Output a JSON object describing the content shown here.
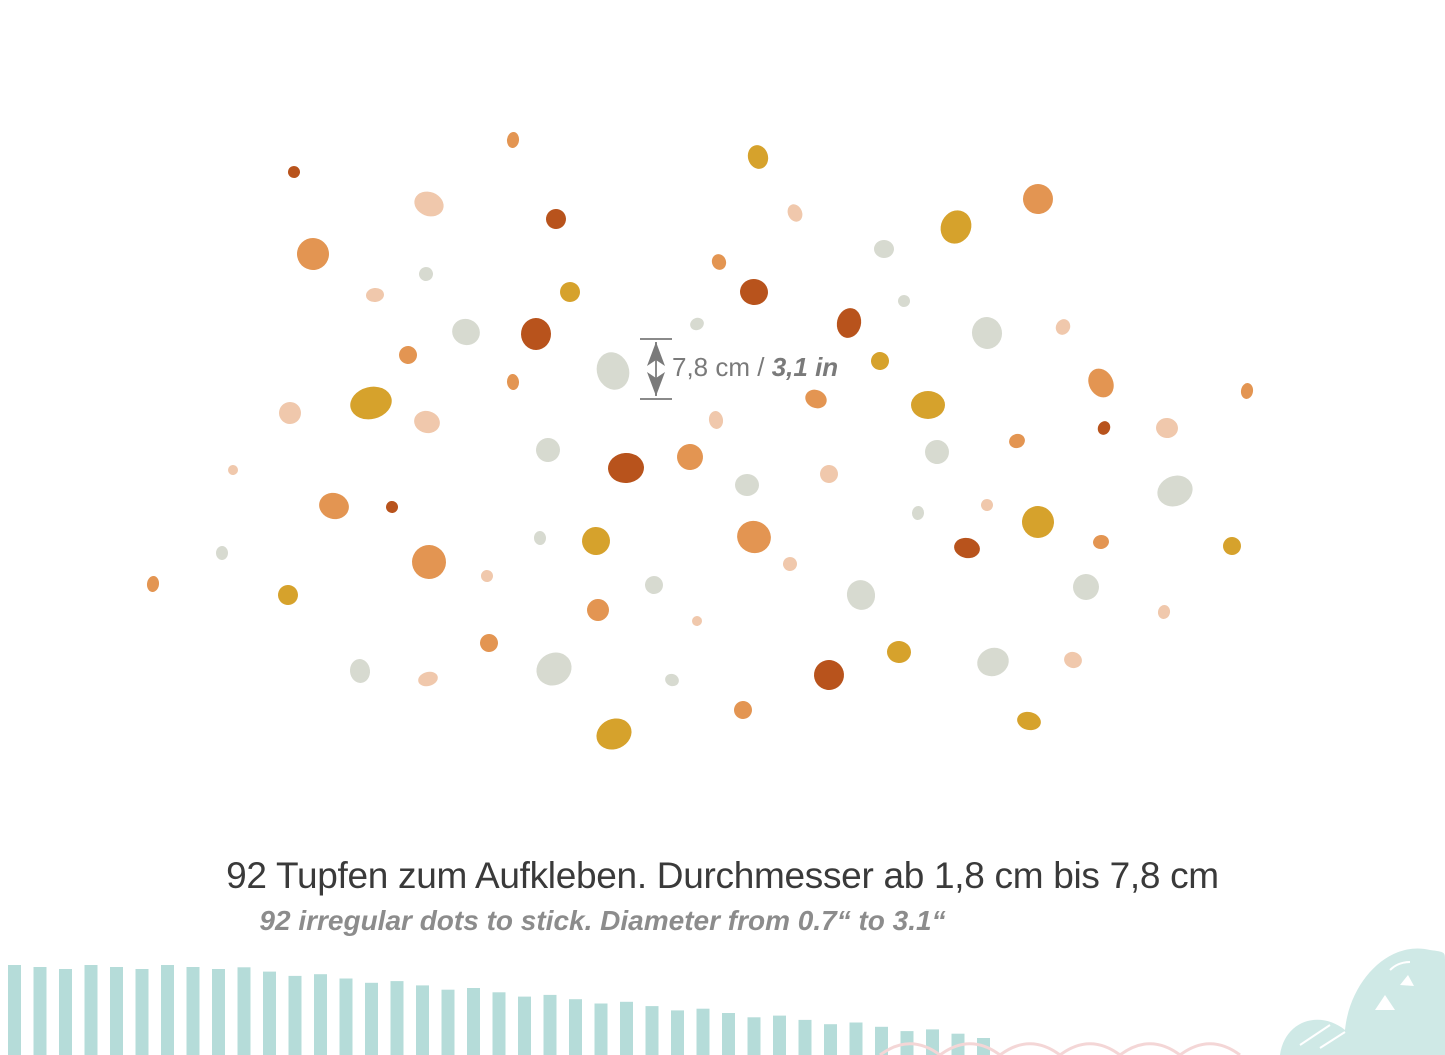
{
  "measure": {
    "metric": "7,8 cm",
    "separator": " / ",
    "imperial": "3,1 in"
  },
  "caption": {
    "german": "92 Tupfen zum Aufkleben. Durchmesser ab 1,8 cm bis 7,8 cm",
    "english": "92 irregular dots to stick. Diameter from 0.7“ to 3.1“"
  },
  "colors": {
    "rust": "#b8531c",
    "orange": "#e39552",
    "mustard": "#d6a22c",
    "peach": "#f0c8ac",
    "sage": "#d7dad0",
    "stripe": "#a8d6d2",
    "arrow": "#7a7a7a"
  },
  "icons": {
    "measure_arrow": "double-arrow-vertical-icon",
    "decor_stripes": "striped-border-icon",
    "decor_mountain": "mountain-doodle-icon"
  }
}
